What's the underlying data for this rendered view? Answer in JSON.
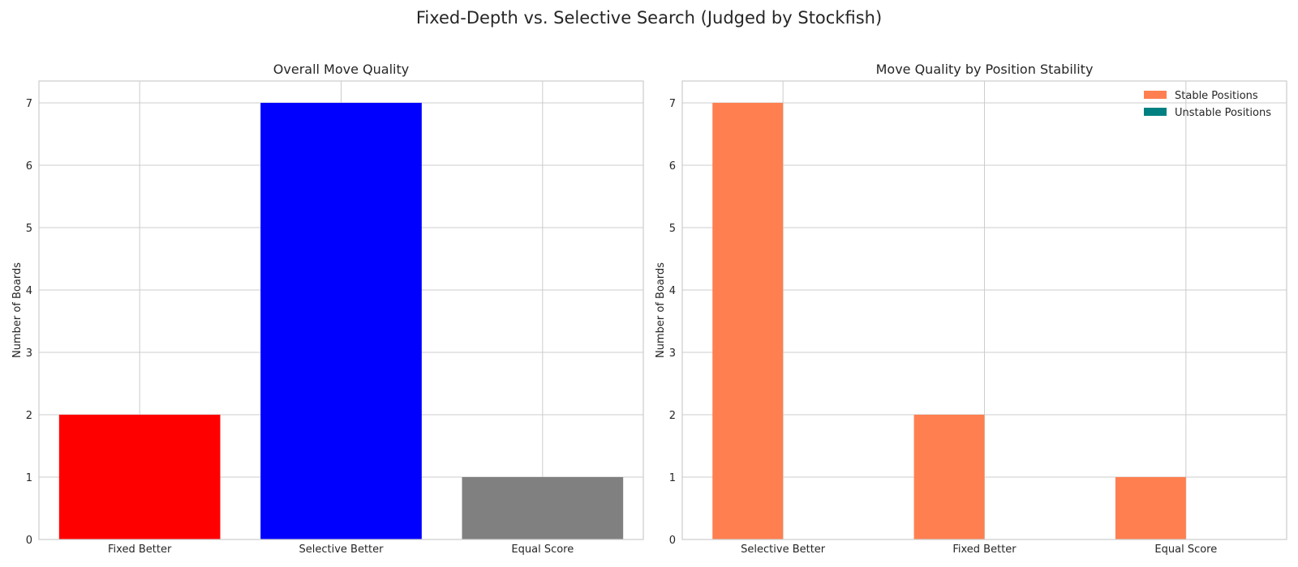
{
  "figure_title": "Fixed-Depth vs. Selective Search (Judged by Stockfish)",
  "colors": {
    "background": "#ffffff",
    "grid": "#cccccc",
    "axes_edge": "#cccccc",
    "text": "#262626"
  },
  "chart_data": [
    {
      "type": "bar",
      "title": "Overall Move Quality",
      "xlabel": "",
      "ylabel": "Number of Boards",
      "categories": [
        "Fixed Better",
        "Selective Better",
        "Equal Score"
      ],
      "values": [
        2,
        7,
        1
      ],
      "bar_colors": [
        "#ff0000",
        "#0000ff",
        "#808080"
      ],
      "ylim": [
        0,
        7.35
      ],
      "yticks": [
        0,
        1,
        2,
        3,
        4,
        5,
        6,
        7
      ],
      "grid": true,
      "legend": null
    },
    {
      "type": "bar",
      "title": "Move Quality by Position Stability",
      "xlabel": "",
      "ylabel": "Number of Boards",
      "categories": [
        "Selective Better",
        "Fixed Better",
        "Equal Score"
      ],
      "series": [
        {
          "name": "Stable Positions",
          "values": [
            7,
            2,
            1
          ],
          "color": "#ff7f50"
        },
        {
          "name": "Unstable Positions",
          "values": [
            0,
            0,
            0
          ],
          "color": "#008080"
        }
      ],
      "ylim": [
        0,
        7.35
      ],
      "yticks": [
        0,
        1,
        2,
        3,
        4,
        5,
        6,
        7
      ],
      "grid": true,
      "legend": "upper right"
    }
  ]
}
